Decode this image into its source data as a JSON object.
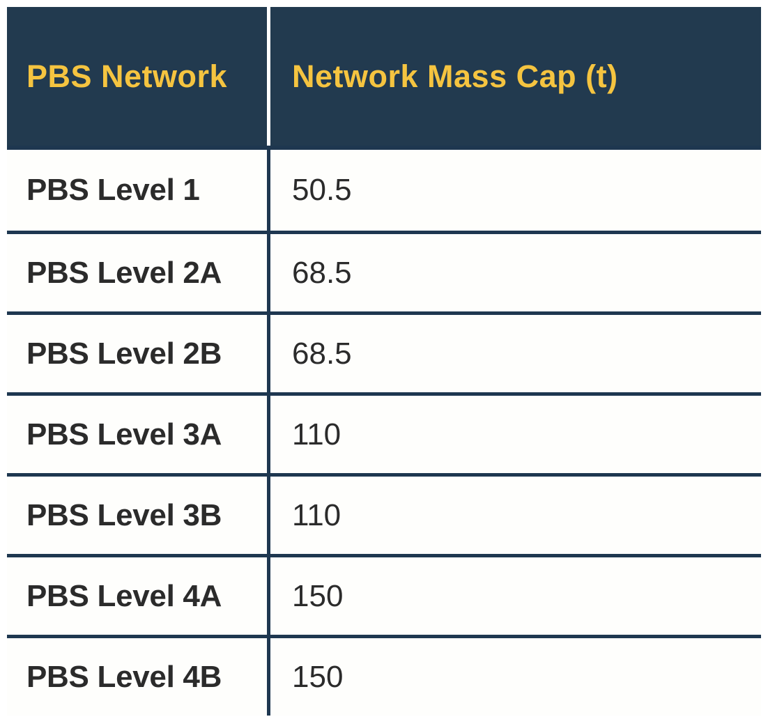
{
  "colors": {
    "header_bg": "#223A4F",
    "header_text": "#F5C440",
    "divider": "#1E3750",
    "body_text": "#2B2B2B",
    "row_bg": "#FEFEFC",
    "header_divider": "#FFFFFF",
    "page_bg": "#FFFFFF"
  },
  "table": {
    "headers": [
      "PBS Network",
      "Network Mass Cap (t)"
    ],
    "rows": [
      {
        "network": "PBS Level 1",
        "mass_cap": "50.5"
      },
      {
        "network": "PBS Level 2A",
        "mass_cap": "68.5"
      },
      {
        "network": "PBS Level 2B",
        "mass_cap": "68.5"
      },
      {
        "network": "PBS Level 3A",
        "mass_cap": "110"
      },
      {
        "network": "PBS Level 3B",
        "mass_cap": "110"
      },
      {
        "network": "PBS Level 4A",
        "mass_cap": "150"
      },
      {
        "network": "PBS Level 4B",
        "mass_cap": "150"
      }
    ]
  },
  "chart_data": {
    "type": "table",
    "title": "",
    "columns": [
      "PBS Network",
      "Network Mass Cap (t)"
    ],
    "categories": [
      "PBS Level 1",
      "PBS Level 2A",
      "PBS Level 2B",
      "PBS Level 3A",
      "PBS Level 3B",
      "PBS Level 4A",
      "PBS Level 4B"
    ],
    "values": [
      50.5,
      68.5,
      68.5,
      110,
      110,
      150,
      150
    ]
  }
}
